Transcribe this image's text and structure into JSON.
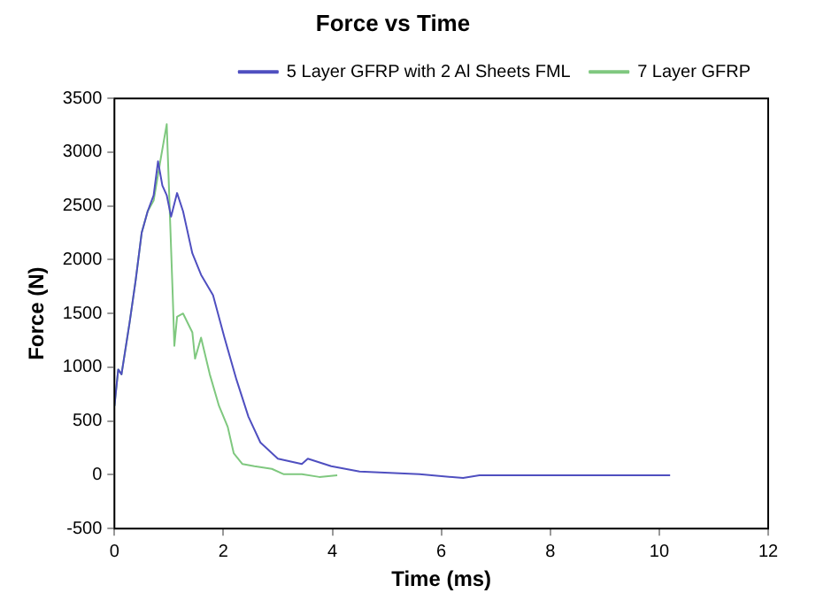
{
  "chart_data": {
    "type": "line",
    "title": "Force vs Time",
    "xlabel": "Time (ms)",
    "ylabel": "Force (N)",
    "xlim": [
      0,
      12
    ],
    "xticks": [
      0,
      2,
      4,
      6,
      8,
      10,
      12
    ],
    "ylim": [
      -500,
      3500
    ],
    "yticks": [
      -500,
      0,
      500,
      1000,
      1500,
      2000,
      2500,
      3000,
      3500
    ],
    "legend": "top right",
    "grid": false,
    "marker": "none",
    "line_style": "solid",
    "series": [
      {
        "name": "5 Layer GFRP with 2 Al Sheets FML",
        "color": "#4f4fc0",
        "x": [
          0,
          0.07,
          0.13,
          0.28,
          0.39,
          0.5,
          0.61,
          0.72,
          0.8,
          0.88,
          0.96,
          1.04,
          1.15,
          1.26,
          1.43,
          1.59,
          1.81,
          2.02,
          2.24,
          2.46,
          2.68,
          3.0,
          3.44,
          3.55,
          3.98,
          4.5,
          5.6,
          6.4,
          6.7,
          8.9,
          10.2
        ],
        "values": [
          640,
          980,
          935,
          1420,
          1810,
          2250,
          2450,
          2600,
          2915,
          2690,
          2600,
          2400,
          2620,
          2450,
          2060,
          1860,
          1670,
          1275,
          885,
          540,
          300,
          150,
          100,
          150,
          80,
          30,
          5,
          -30,
          -5,
          -5,
          -5
        ]
      },
      {
        "name": "7 Layer GFRP",
        "color": "#7fc87f",
        "x": [
          0,
          0.07,
          0.13,
          0.28,
          0.39,
          0.5,
          0.61,
          0.72,
          0.85,
          0.96,
          1.07,
          1.1,
          1.15,
          1.26,
          1.43,
          1.48,
          1.59,
          1.75,
          1.92,
          2.08,
          2.19,
          2.35,
          2.57,
          2.89,
          3.11,
          3.44,
          3.76,
          4.09
        ],
        "values": [
          640,
          980,
          935,
          1420,
          1810,
          2250,
          2450,
          2550,
          2940,
          3260,
          1670,
          1200,
          1470,
          1500,
          1325,
          1080,
          1275,
          935,
          640,
          445,
          200,
          100,
          80,
          55,
          5,
          5,
          -20,
          -5
        ]
      }
    ]
  }
}
